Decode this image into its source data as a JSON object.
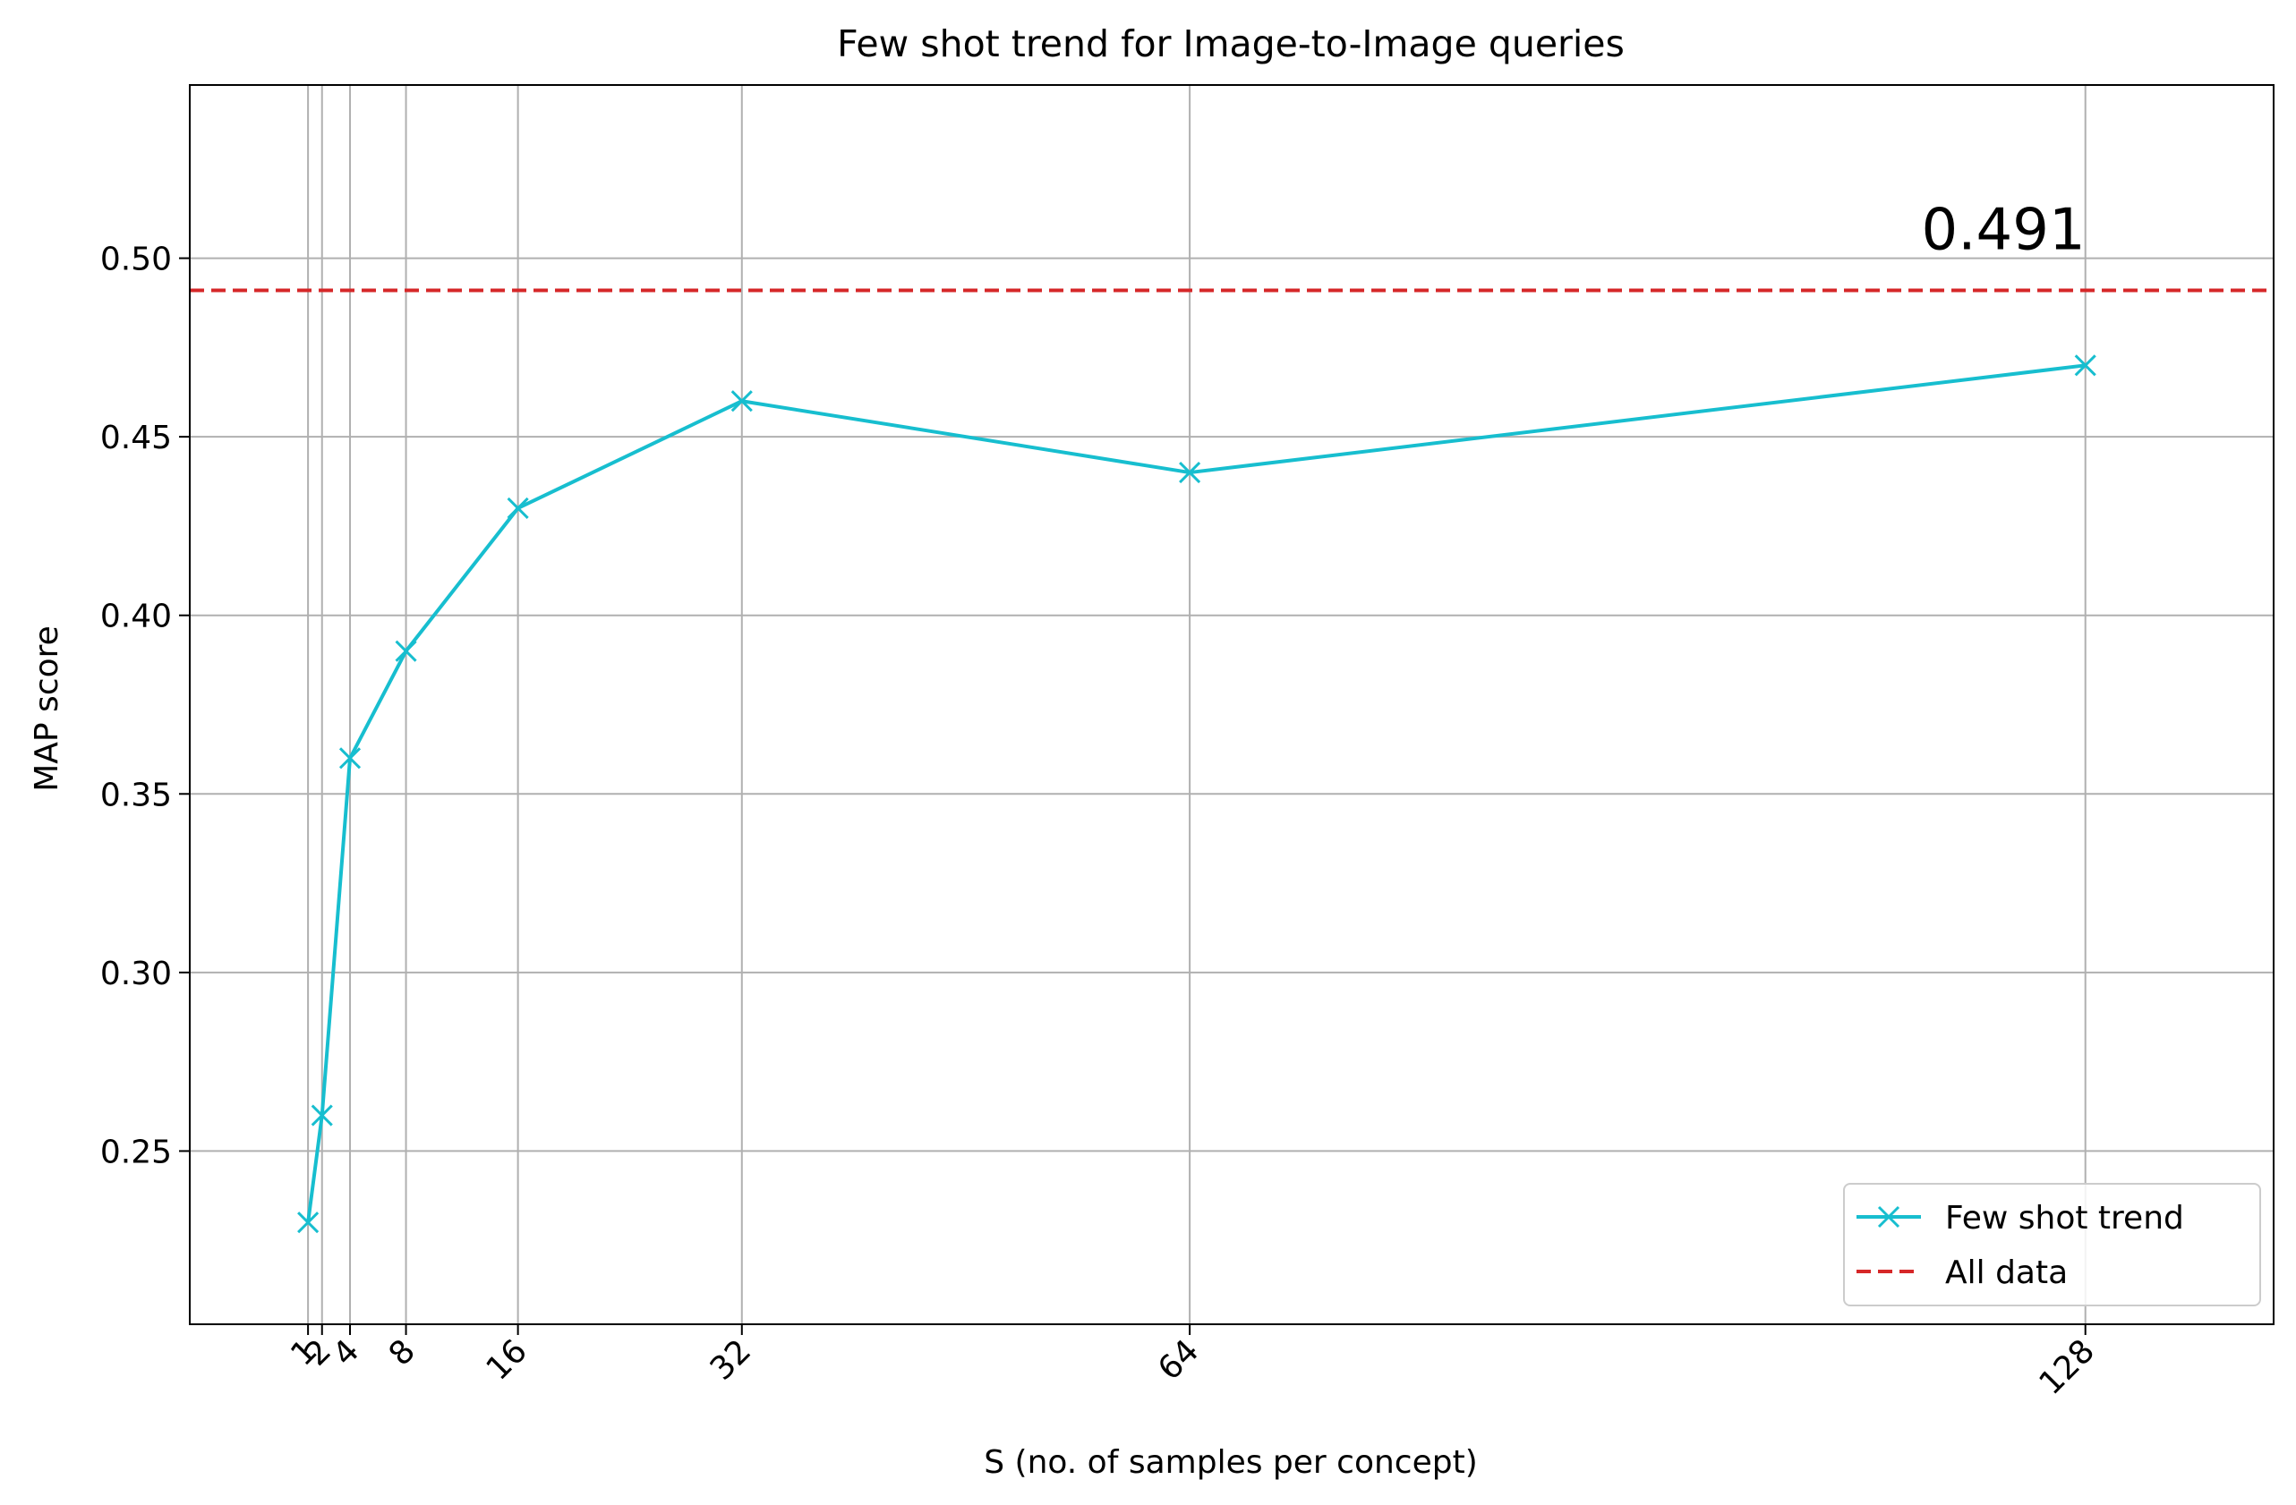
{
  "chart_data": {
    "type": "line",
    "title": "Few shot trend for Image-to-Image queries",
    "xlabel": "S (no. of samples per concept)",
    "ylabel": "MAP score",
    "xlim": [
      -7.45,
      141.45
    ],
    "ylim": [
      0.2015,
      0.5485
    ],
    "x_ticks": [
      1,
      2,
      4,
      8,
      16,
      32,
      64,
      128
    ],
    "x_tick_labels": [
      "1",
      "2",
      "4",
      "8",
      "16",
      "32",
      "64",
      "128"
    ],
    "y_ticks": [
      0.25,
      0.3,
      0.35,
      0.4,
      0.45,
      0.5
    ],
    "y_tick_labels": [
      "0.25",
      "0.30",
      "0.35",
      "0.40",
      "0.45",
      "0.50"
    ],
    "grid": true,
    "legend_position": "lower right",
    "series": [
      {
        "name": "Few shot trend",
        "color": "#17becf",
        "marker": "x",
        "x": [
          1,
          2,
          4,
          8,
          16,
          32,
          64,
          128
        ],
        "y": [
          0.23,
          0.26,
          0.36,
          0.39,
          0.43,
          0.46,
          0.44,
          0.47
        ]
      }
    ],
    "reference_line": {
      "name": "All data",
      "color": "#d62728",
      "style": "dashed",
      "y": 0.491,
      "label": "0.491"
    }
  }
}
